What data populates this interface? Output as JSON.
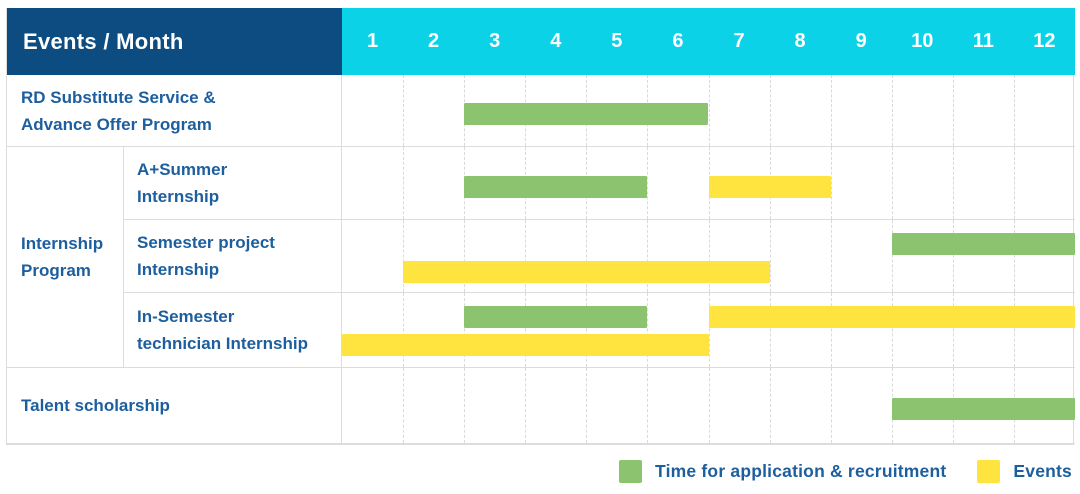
{
  "colors": {
    "header_bg": "#0c4c81",
    "months_bg": "#0cd2e8",
    "green": "#8bc36e",
    "yellow": "#ffe33f",
    "label_blue": "#1d5e9e"
  },
  "header": {
    "label": "Events / Month",
    "months": [
      "1",
      "2",
      "3",
      "4",
      "5",
      "6",
      "7",
      "8",
      "9",
      "10",
      "11",
      "12"
    ]
  },
  "gantt": {
    "group_label": "Internship\nProgram",
    "rows": [
      {
        "id": "rd-substitute",
        "sub": false,
        "label": "RD Substitute Service &\nAdvance Offer Program",
        "bars": [
          {
            "color": "green",
            "start": 3,
            "end": 6,
            "track": 0
          }
        ]
      },
      {
        "id": "a-plus-summer",
        "sub": true,
        "label": "A+Summer\nInternship",
        "bars": [
          {
            "color": "green",
            "start": 3,
            "end": 5,
            "track": 0
          },
          {
            "color": "yellow",
            "start": 7,
            "end": 8,
            "track": 0
          }
        ]
      },
      {
        "id": "semester-project",
        "sub": true,
        "label": "Semester project\nInternship",
        "bars": [
          {
            "color": "green",
            "start": 10,
            "end": 12,
            "track": 0
          },
          {
            "color": "yellow",
            "start": 2,
            "end": 7,
            "track": 1
          }
        ]
      },
      {
        "id": "in-semester-technician",
        "sub": true,
        "label": "In-Semester\ntechnician Internship",
        "bars": [
          {
            "color": "green",
            "start": 3,
            "end": 5,
            "track": 0
          },
          {
            "color": "yellow",
            "start": 7,
            "end": 12,
            "track": 0
          },
          {
            "color": "yellow",
            "start": 1,
            "end": 6,
            "track": 1
          }
        ]
      },
      {
        "id": "talent-scholarship",
        "sub": false,
        "label": "Talent scholarship",
        "bars": [
          {
            "color": "green",
            "start": 10,
            "end": 12,
            "track": 0
          }
        ]
      }
    ]
  },
  "legend": {
    "items": [
      {
        "color": "green",
        "label": "Time for application & recruitment"
      },
      {
        "color": "yellow",
        "label": "Events"
      }
    ]
  },
  "chart_data": {
    "type": "table",
    "title": "Events / Month",
    "x_axis": {
      "label": "Month",
      "ticks": [
        "1",
        "2",
        "3",
        "4",
        "5",
        "6",
        "7",
        "8",
        "9",
        "10",
        "11",
        "12"
      ],
      "range": [
        1,
        12
      ],
      "grid": "dashed-vertical"
    },
    "legend": [
      {
        "label": "Time for application & recruitment",
        "color": "#8bc36e"
      },
      {
        "label": "Events",
        "color": "#ffe33f"
      }
    ],
    "rows": [
      {
        "group": "",
        "label": "RD Substitute Service & Advance Offer Program",
        "bars": [
          {
            "kind": "application",
            "months": [
              3,
              6
            ]
          }
        ]
      },
      {
        "group": "Internship Program",
        "label": "A+Summer Internship",
        "bars": [
          {
            "kind": "application",
            "months": [
              3,
              5
            ]
          },
          {
            "kind": "event",
            "months": [
              7,
              8
            ]
          }
        ]
      },
      {
        "group": "Internship Program",
        "label": "Semester project Internship",
        "bars": [
          {
            "kind": "application",
            "months": [
              10,
              12
            ]
          },
          {
            "kind": "event",
            "months": [
              2,
              7
            ]
          }
        ]
      },
      {
        "group": "Internship Program",
        "label": "In-Semester technician Internship",
        "bars": [
          {
            "kind": "application",
            "months": [
              3,
              5
            ]
          },
          {
            "kind": "event",
            "months": [
              7,
              12
            ]
          },
          {
            "kind": "event",
            "months": [
              1,
              6
            ]
          }
        ]
      },
      {
        "group": "",
        "label": "Talent scholarship",
        "bars": [
          {
            "kind": "application",
            "months": [
              10,
              12
            ]
          }
        ]
      }
    ]
  }
}
